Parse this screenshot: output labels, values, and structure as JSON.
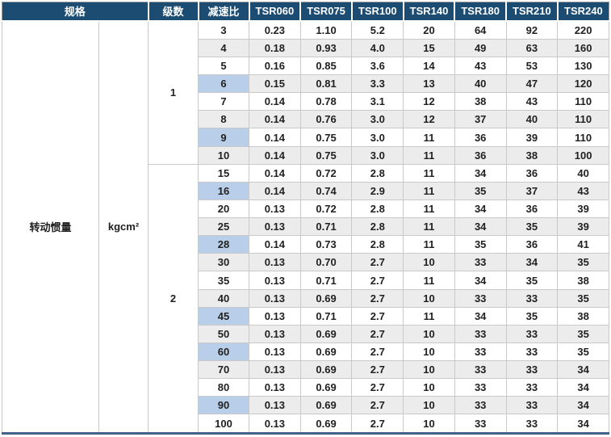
{
  "table": {
    "header": {
      "spec_label": "规格",
      "stage_label": "级数",
      "ratio_label": "减速比",
      "models": [
        "TSR060",
        "TSR075",
        "TSR100",
        "TSR140",
        "TSR180",
        "TSR210",
        "TSR240"
      ]
    },
    "row_label": "转动惯量",
    "unit_label": "kgcm²",
    "groups": [
      {
        "stage": "1",
        "rows": [
          {
            "ratio": "3",
            "highlight": false,
            "values": [
              "0.23",
              "1.10",
              "5.2",
              "20",
              "64",
              "92",
              "220"
            ]
          },
          {
            "ratio": "4",
            "highlight": false,
            "values": [
              "0.18",
              "0.93",
              "4.0",
              "15",
              "49",
              "63",
              "160"
            ]
          },
          {
            "ratio": "5",
            "highlight": false,
            "values": [
              "0.16",
              "0.85",
              "3.6",
              "14",
              "43",
              "53",
              "130"
            ]
          },
          {
            "ratio": "6",
            "highlight": true,
            "values": [
              "0.15",
              "0.81",
              "3.3",
              "13",
              "40",
              "47",
              "120"
            ]
          },
          {
            "ratio": "7",
            "highlight": false,
            "values": [
              "0.14",
              "0.78",
              "3.1",
              "12",
              "38",
              "43",
              "110"
            ]
          },
          {
            "ratio": "8",
            "highlight": false,
            "values": [
              "0.14",
              "0.76",
              "3.0",
              "12",
              "37",
              "40",
              "110"
            ]
          },
          {
            "ratio": "9",
            "highlight": true,
            "values": [
              "0.14",
              "0.75",
              "3.0",
              "11",
              "36",
              "39",
              "110"
            ]
          },
          {
            "ratio": "10",
            "highlight": false,
            "values": [
              "0.14",
              "0.75",
              "3.0",
              "11",
              "36",
              "38",
              "100"
            ]
          }
        ]
      },
      {
        "stage": "2",
        "rows": [
          {
            "ratio": "15",
            "highlight": false,
            "values": [
              "0.14",
              "0.72",
              "2.8",
              "11",
              "34",
              "36",
              "40"
            ]
          },
          {
            "ratio": "16",
            "highlight": true,
            "values": [
              "0.14",
              "0.74",
              "2.9",
              "11",
              "35",
              "37",
              "43"
            ]
          },
          {
            "ratio": "20",
            "highlight": false,
            "values": [
              "0.13",
              "0.72",
              "2.8",
              "11",
              "34",
              "36",
              "39"
            ]
          },
          {
            "ratio": "25",
            "highlight": false,
            "values": [
              "0.13",
              "0.71",
              "2.8",
              "11",
              "34",
              "35",
              "39"
            ]
          },
          {
            "ratio": "28",
            "highlight": true,
            "values": [
              "0.14",
              "0.73",
              "2.8",
              "11",
              "35",
              "36",
              "41"
            ]
          },
          {
            "ratio": "30",
            "highlight": false,
            "values": [
              "0.13",
              "0.70",
              "2.7",
              "10",
              "33",
              "34",
              "35"
            ]
          },
          {
            "ratio": "35",
            "highlight": false,
            "values": [
              "0.13",
              "0.71",
              "2.7",
              "11",
              "34",
              "35",
              "38"
            ]
          },
          {
            "ratio": "40",
            "highlight": false,
            "values": [
              "0.13",
              "0.69",
              "2.7",
              "10",
              "33",
              "33",
              "35"
            ]
          },
          {
            "ratio": "45",
            "highlight": true,
            "values": [
              "0.13",
              "0.71",
              "2.7",
              "11",
              "34",
              "35",
              "38"
            ]
          },
          {
            "ratio": "50",
            "highlight": false,
            "values": [
              "0.13",
              "0.69",
              "2.7",
              "10",
              "33",
              "33",
              "35"
            ]
          },
          {
            "ratio": "60",
            "highlight": true,
            "values": [
              "0.13",
              "0.69",
              "2.7",
              "10",
              "33",
              "33",
              "35"
            ]
          },
          {
            "ratio": "70",
            "highlight": false,
            "values": [
              "0.13",
              "0.69",
              "2.7",
              "10",
              "33",
              "33",
              "34"
            ]
          },
          {
            "ratio": "80",
            "highlight": false,
            "values": [
              "0.13",
              "0.69",
              "2.7",
              "10",
              "33",
              "33",
              "34"
            ]
          },
          {
            "ratio": "90",
            "highlight": true,
            "values": [
              "0.13",
              "0.69",
              "2.7",
              "10",
              "33",
              "33",
              "34"
            ]
          },
          {
            "ratio": "100",
            "highlight": false,
            "values": [
              "0.13",
              "0.69",
              "2.7",
              "10",
              "33",
              "33",
              "34"
            ]
          }
        ]
      }
    ],
    "colors": {
      "header_bg": "#1d4c73",
      "header_text": "#ffffff",
      "stripe": "#ececec",
      "highlight": "#b9cfe9",
      "grid_border": "#c9c9c9",
      "outer_border": "#9b9b9b",
      "bottom_line": "#44618c",
      "body_text": "#212121"
    }
  }
}
